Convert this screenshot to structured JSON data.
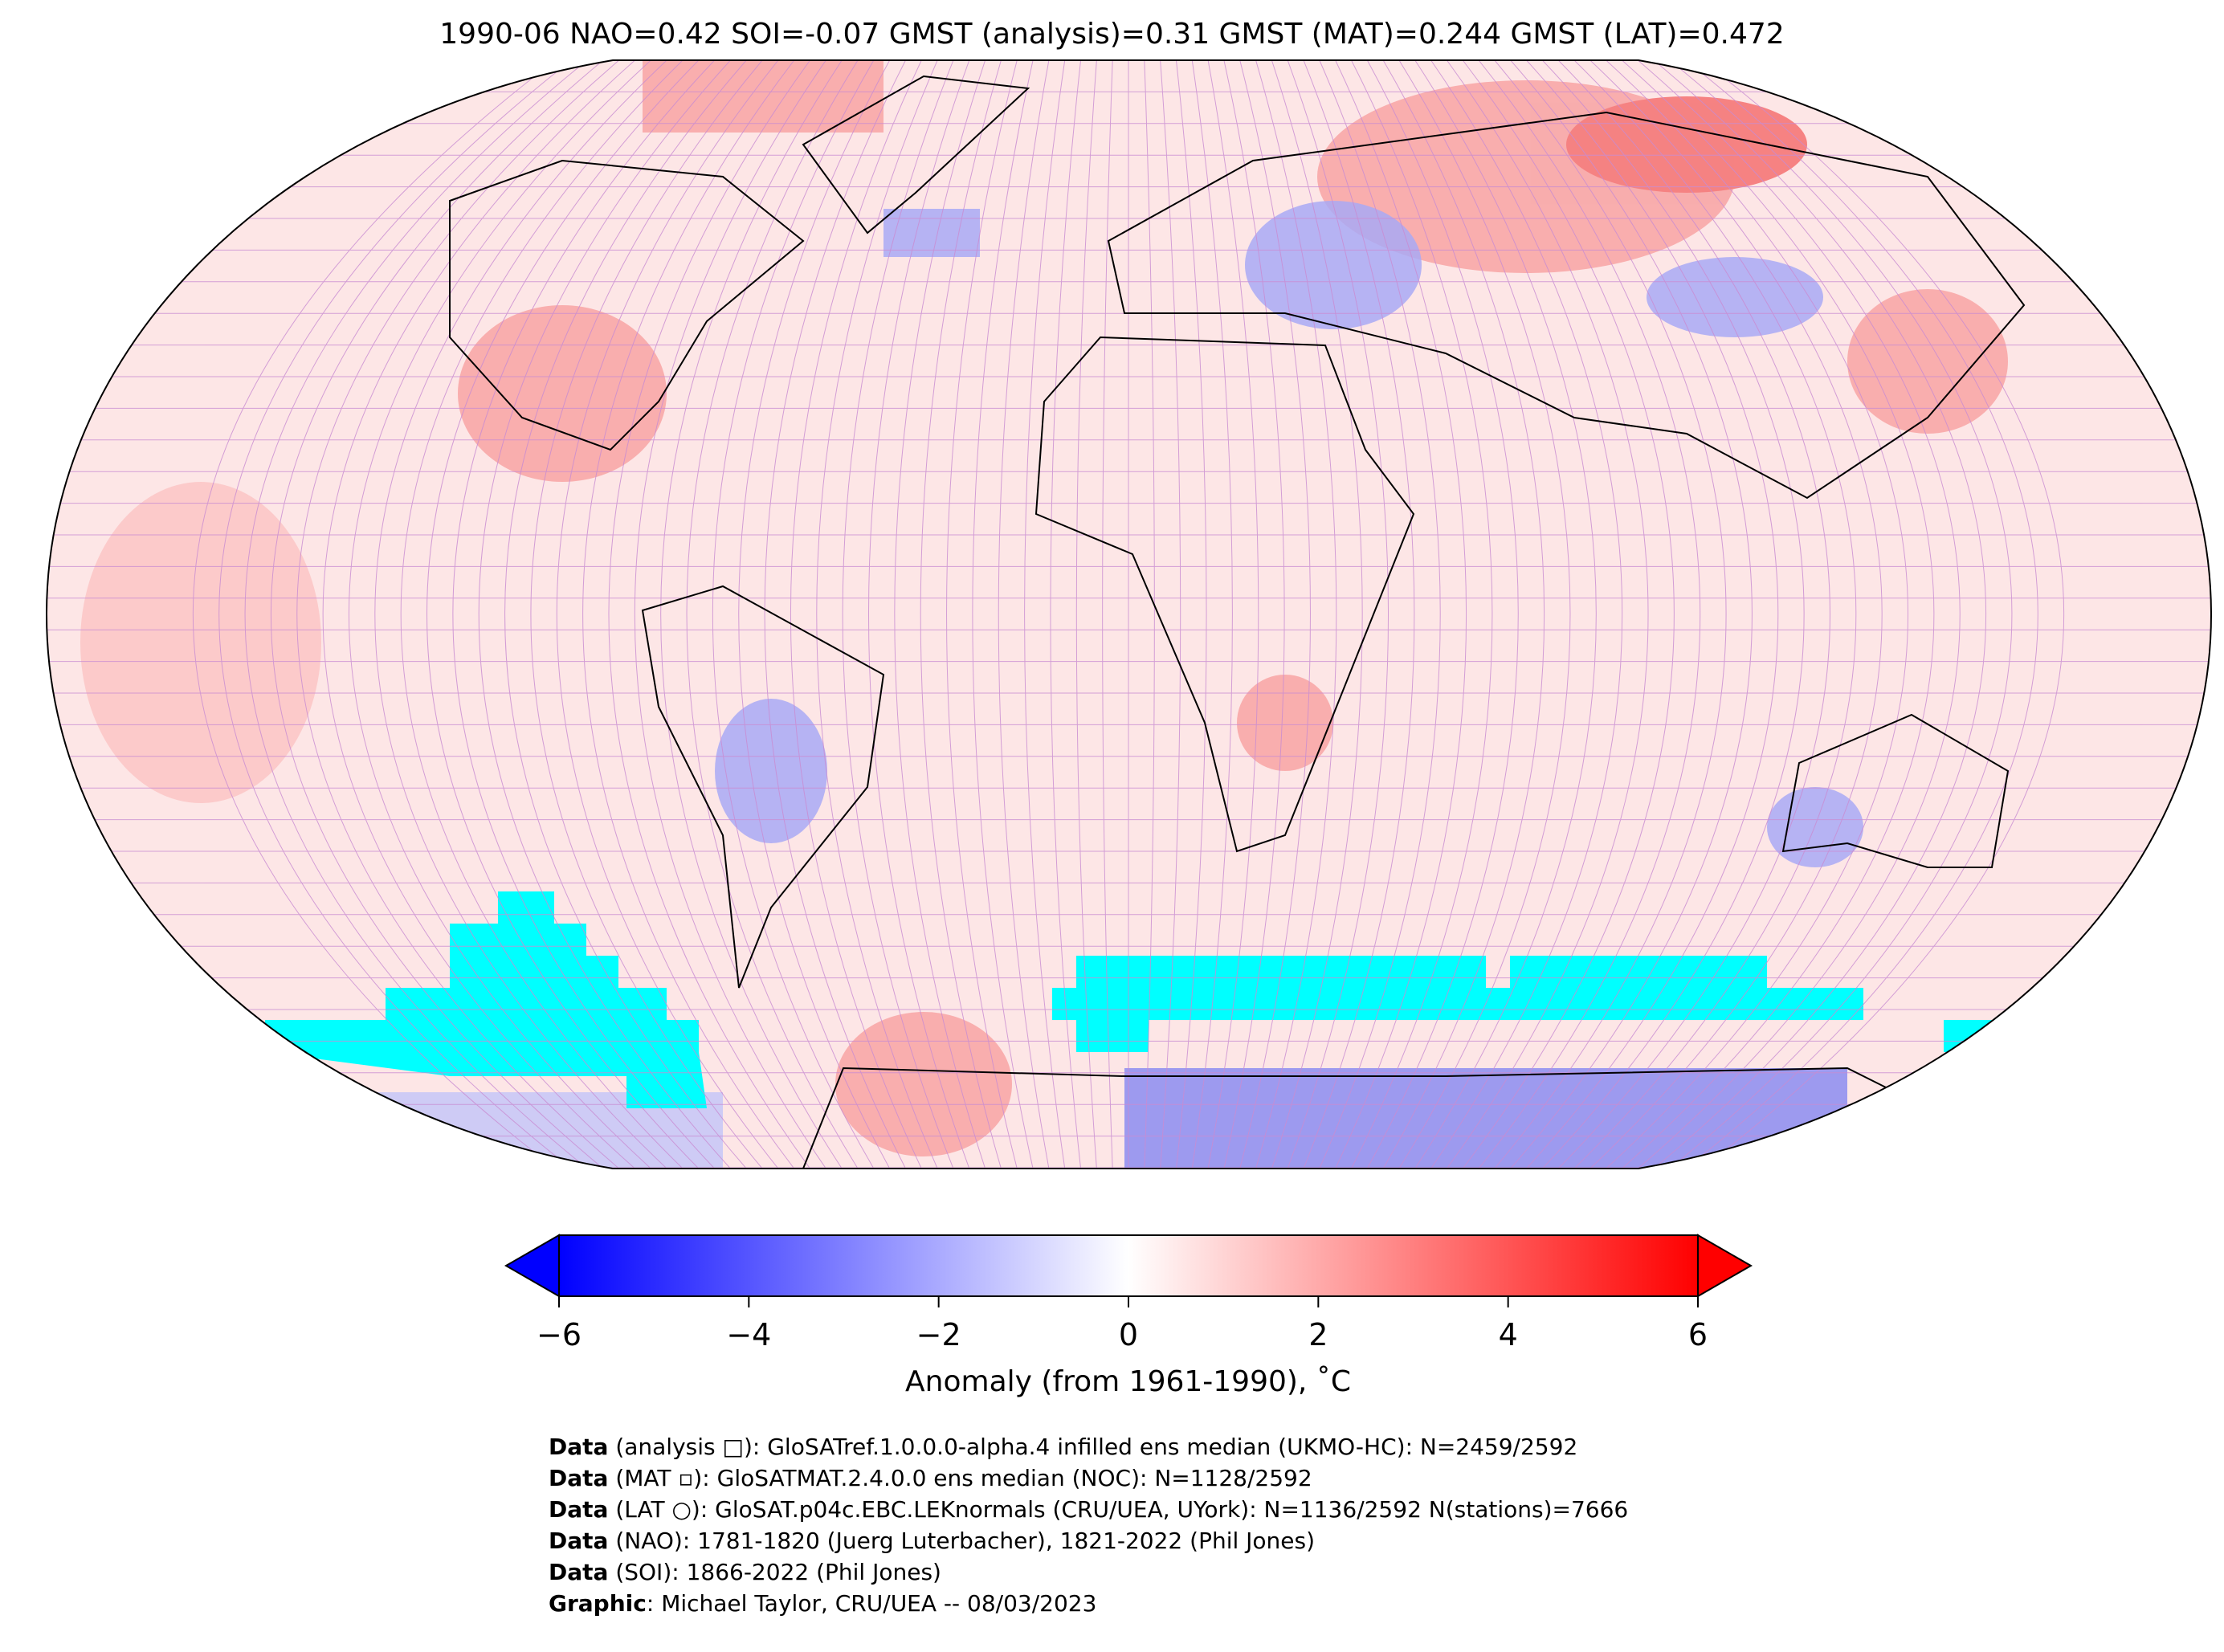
{
  "title": "1990-06 NAO=0.42 SOI=-0.07 GMST (analysis)=0.31 GMST (MAT)=0.244 GMST (LAT)=0.472",
  "colorbar": {
    "label": "Anomaly (from 1961-1990), ˚C",
    "ticks": [
      "−6",
      "−4",
      "−2",
      "0",
      "2",
      "4",
      "6"
    ],
    "range": [
      -6,
      6
    ],
    "colors": {
      "min": "#0000ff",
      "mid": "#ffffff",
      "max": "#ff0000",
      "missing": "#00ffff"
    }
  },
  "footer": [
    {
      "bold": "Data",
      "text": " (analysis □): GloSATref.1.0.0.0-alpha.4 infilled ens median (UKMO-HC): N=2459/2592"
    },
    {
      "bold": "Data",
      "text": " (MAT ▫): GloSATMAT.2.4.0.0 ens median (NOC): N=1128/2592"
    },
    {
      "bold": "Data",
      "text": " (LAT ○): GloSAT.p04c.EBC.LEKnormals (CRU/UEA, UYork): N=1136/2592 N(stations)=7666"
    },
    {
      "bold": "Data",
      "text": " (NAO): 1781-1820 (Juerg Luterbacher), 1821-2022 (Phil Jones)"
    },
    {
      "bold": "Data",
      "text": " (SOI): 1866-2022 (Phil Jones)"
    },
    {
      "bold": "Graphic",
      "text": ": Michael Taylor, CRU/UEA -- 08/03/2023"
    }
  ]
}
